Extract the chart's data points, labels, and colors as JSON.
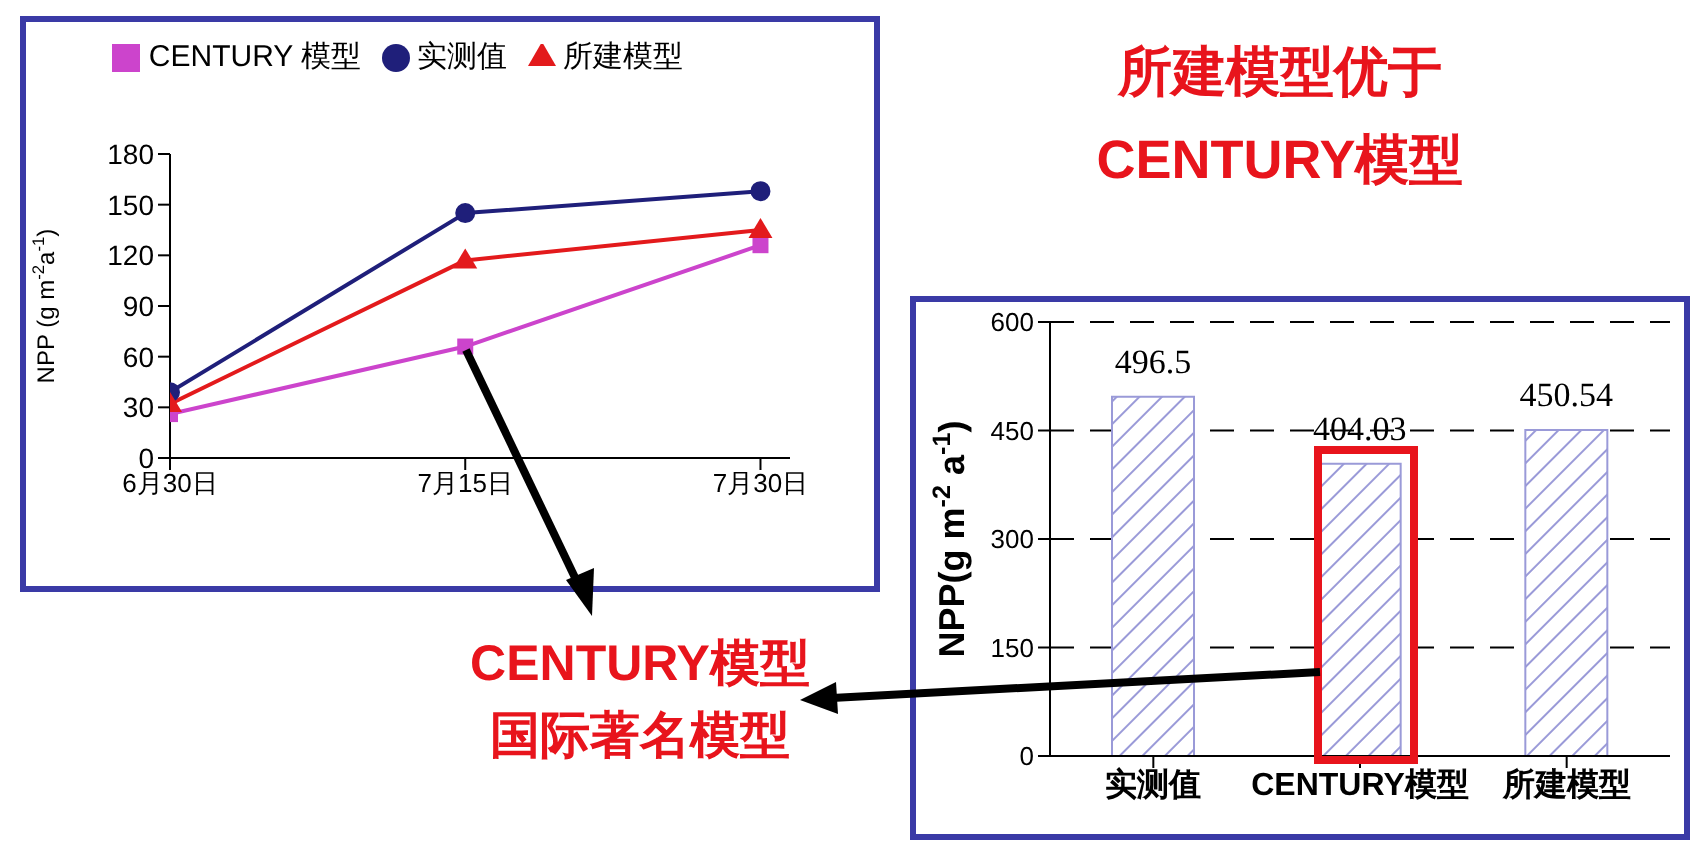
{
  "chart_data": [
    {
      "type": "line",
      "categories": [
        "6月30日",
        "7月15日",
        "7月30日"
      ],
      "ylabel": "NPP (g m$^{-2}$a$^{-1}$)",
      "ylim": [
        0,
        180
      ],
      "yticks": [
        0,
        30,
        60,
        90,
        120,
        150,
        180
      ],
      "legend": "top",
      "series": [
        {
          "name": "实测值",
          "color": "#1f1f7a",
          "marker": "circle",
          "values": [
            39,
            145,
            158
          ]
        },
        {
          "name": "CENTURY 模型",
          "color": "#cc44cc",
          "marker": "square",
          "values": [
            26,
            66,
            126
          ]
        },
        {
          "name": "所建模型",
          "color": "#e31a1c",
          "marker": "triangle",
          "values": [
            32,
            117,
            135
          ]
        }
      ]
    },
    {
      "type": "bar",
      "categories": [
        "实测值",
        "CENTURY模型",
        "所建模型"
      ],
      "values": [
        496.5,
        404.03,
        450.54
      ],
      "color": "#9a9ad8",
      "ylabel": "NPP(g m$^{-2}$ a$^{-1}$)",
      "ylim": [
        0,
        600
      ],
      "yticks": [
        0,
        150,
        300,
        450,
        600
      ],
      "grid": "y",
      "line_style": "dashed",
      "data_labels": true,
      "annotations": [
        "所建模型优于CENTURY模型",
        "CENTURY模型国际著名模型"
      ]
    }
  ]
}
